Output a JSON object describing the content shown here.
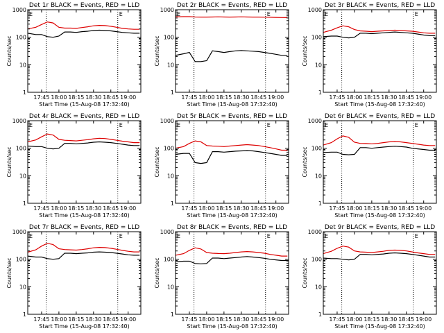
{
  "figure": {
    "colors": {
      "events": "#000000",
      "lld": "#dd0000",
      "axes": "#000000",
      "background": "#ffffff"
    },
    "x_tick_labels": [
      "17:45",
      "18:00",
      "18:15",
      "18:30",
      "18:45",
      "19:00"
    ],
    "y_tick_labels": [
      "1",
      "10",
      "100",
      "1000"
    ],
    "ylabel": "Counts/sec",
    "xlabel": "Start Time (15-Aug-08 17:32:40)",
    "marker_label": "E"
  },
  "chart_data": [
    {
      "type": "line",
      "title": "Det 1r BLACK = Events, RED = LLD",
      "ylabel": "Counts/sec",
      "xlabel": "Start Time (15-Aug-08 17:32:40)",
      "ylim": [
        1,
        1000
      ],
      "y_scale": "log",
      "x_ticks": [
        "17:45",
        "18:00",
        "18:15",
        "18:30",
        "18:45",
        "19:00"
      ],
      "vertical_markers": [
        "17:49",
        "18:51"
      ],
      "grid": false,
      "x": [
        "17:33",
        "17:40",
        "17:45",
        "17:50",
        "17:55",
        "18:00",
        "18:05",
        "18:10",
        "18:15",
        "18:20",
        "18:25",
        "18:30",
        "18:35",
        "18:40",
        "18:45",
        "18:50",
        "18:55",
        "19:00",
        "19:05",
        "19:10"
      ],
      "series": [
        {
          "name": "Events",
          "color": "#000000",
          "values": [
            140,
            125,
            125,
            105,
            100,
            110,
            155,
            155,
            150,
            160,
            165,
            175,
            180,
            175,
            170,
            160,
            150,
            145,
            140,
            140
          ]
        },
        {
          "name": "LLD",
          "color": "#dd0000",
          "values": [
            200,
            230,
            290,
            360,
            330,
            230,
            215,
            215,
            210,
            225,
            240,
            260,
            270,
            265,
            250,
            230,
            210,
            200,
            195,
            195
          ]
        }
      ]
    },
    {
      "type": "line",
      "title": "Det 2r BLACK = Events, RED = LLD",
      "ylabel": "Counts/sec",
      "xlabel": "Start Time (15-Aug-08 17:32:40)",
      "ylim": [
        1,
        1000
      ],
      "y_scale": "log",
      "x_ticks": [
        "17:45",
        "18:00",
        "18:15",
        "18:30",
        "18:45",
        "19:00"
      ],
      "vertical_markers": [
        "17:49",
        "18:51"
      ],
      "grid": false,
      "x": [
        "17:33",
        "17:40",
        "17:45",
        "17:50",
        "17:55",
        "18:00",
        "18:05",
        "18:10",
        "18:15",
        "18:20",
        "18:25",
        "18:30",
        "18:35",
        "18:40",
        "18:45",
        "18:50",
        "18:55",
        "19:00",
        "19:05",
        "19:10"
      ],
      "series": [
        {
          "name": "Events",
          "color": "#000000",
          "values": [
            22,
            25,
            28,
            13,
            13,
            14,
            32,
            30,
            28,
            30,
            32,
            33,
            32,
            31,
            30,
            28,
            26,
            24,
            22,
            22
          ]
        },
        {
          "name": "LLD",
          "color": "#dd0000",
          "values": [
            550,
            560,
            560,
            545,
            540,
            540,
            545,
            550,
            545,
            540,
            545,
            550,
            545,
            540,
            540,
            535,
            530,
            525,
            520,
            515
          ]
        }
      ]
    },
    {
      "type": "line",
      "title": "Det 3r BLACK = Events, RED = LLD",
      "ylabel": "Counts/sec",
      "xlabel": "Start Time (15-Aug-08 17:32:40)",
      "ylim": [
        1,
        1000
      ],
      "y_scale": "log",
      "x_ticks": [
        "17:45",
        "18:00",
        "18:15",
        "18:30",
        "18:45",
        "19:00"
      ],
      "vertical_markers": [
        "17:49",
        "18:51"
      ],
      "grid": false,
      "x": [
        "17:33",
        "17:40",
        "17:45",
        "17:50",
        "17:55",
        "18:00",
        "18:05",
        "18:10",
        "18:15",
        "18:20",
        "18:25",
        "18:30",
        "18:35",
        "18:40",
        "18:45",
        "18:50",
        "18:55",
        "19:00",
        "19:05",
        "19:10"
      ],
      "series": [
        {
          "name": "Events",
          "color": "#000000",
          "values": [
            105,
            110,
            110,
            100,
            95,
            100,
            140,
            140,
            135,
            140,
            145,
            150,
            155,
            150,
            145,
            140,
            130,
            120,
            115,
            115
          ]
        },
        {
          "name": "LLD",
          "color": "#dd0000",
          "values": [
            150,
            180,
            220,
            260,
            240,
            190,
            170,
            165,
            160,
            165,
            170,
            175,
            180,
            175,
            170,
            165,
            155,
            145,
            140,
            140
          ]
        }
      ]
    },
    {
      "type": "line",
      "title": "Det 4r BLACK = Events, RED = LLD",
      "ylabel": "Counts/sec",
      "xlabel": "Start Time (15-Aug-08 17:32:40)",
      "ylim": [
        1,
        1000
      ],
      "y_scale": "log",
      "x_ticks": [
        "17:45",
        "18:00",
        "18:15",
        "18:30",
        "18:45",
        "19:00"
      ],
      "vertical_markers": [
        "17:49",
        "18:51"
      ],
      "grid": false,
      "x": [
        "17:33",
        "17:40",
        "17:45",
        "17:50",
        "17:55",
        "18:00",
        "18:05",
        "18:10",
        "18:15",
        "18:20",
        "18:25",
        "18:30",
        "18:35",
        "18:40",
        "18:45",
        "18:50",
        "18:55",
        "19:00",
        "19:05",
        "19:10"
      ],
      "series": [
        {
          "name": "Events",
          "color": "#000000",
          "values": [
            120,
            115,
            115,
            100,
            95,
            100,
            150,
            150,
            145,
            150,
            155,
            165,
            170,
            165,
            160,
            150,
            140,
            130,
            125,
            125
          ]
        },
        {
          "name": "LLD",
          "color": "#dd0000",
          "values": [
            170,
            200,
            260,
            330,
            300,
            210,
            195,
            190,
            185,
            195,
            205,
            220,
            230,
            225,
            210,
            195,
            180,
            170,
            160,
            160
          ]
        }
      ]
    },
    {
      "type": "line",
      "title": "Det 5r BLACK = Events, RED = LLD",
      "ylabel": "Counts/sec",
      "xlabel": "Start Time (15-Aug-08 17:32:40)",
      "ylim": [
        1,
        1000
      ],
      "y_scale": "log",
      "x_ticks": [
        "17:45",
        "18:00",
        "18:15",
        "18:30",
        "18:45",
        "19:00"
      ],
      "vertical_markers": [
        "17:49",
        "18:51"
      ],
      "grid": false,
      "x": [
        "17:33",
        "17:40",
        "17:45",
        "17:50",
        "17:55",
        "18:00",
        "18:05",
        "18:10",
        "18:15",
        "18:20",
        "18:25",
        "18:30",
        "18:35",
        "18:40",
        "18:45",
        "18:50",
        "18:55",
        "19:00",
        "19:05",
        "19:10"
      ],
      "series": [
        {
          "name": "Events",
          "color": "#000000",
          "values": [
            60,
            65,
            65,
            30,
            28,
            30,
            75,
            75,
            72,
            75,
            78,
            80,
            82,
            80,
            75,
            70,
            65,
            60,
            55,
            55
          ]
        },
        {
          "name": "LLD",
          "color": "#dd0000",
          "values": [
            100,
            115,
            150,
            185,
            170,
            125,
            120,
            118,
            115,
            120,
            125,
            130,
            135,
            130,
            125,
            115,
            105,
            95,
            85,
            85
          ]
        }
      ]
    },
    {
      "type": "line",
      "title": "Det 6r BLACK = Events, RED = LLD",
      "ylabel": "Counts/sec",
      "xlabel": "Start Time (15-Aug-08 17:32:40)",
      "ylim": [
        1,
        1000
      ],
      "y_scale": "log",
      "x_ticks": [
        "17:45",
        "18:00",
        "18:15",
        "18:30",
        "18:45",
        "19:00"
      ],
      "vertical_markers": [
        "17:49",
        "18:51"
      ],
      "grid": false,
      "x": [
        "17:33",
        "17:40",
        "17:45",
        "17:50",
        "17:55",
        "18:00",
        "18:05",
        "18:10",
        "18:15",
        "18:20",
        "18:25",
        "18:30",
        "18:35",
        "18:40",
        "18:45",
        "18:50",
        "18:55",
        "19:00",
        "19:05",
        "19:10"
      ],
      "series": [
        {
          "name": "Events",
          "color": "#000000",
          "values": [
            70,
            72,
            72,
            60,
            58,
            60,
            105,
            105,
            100,
            105,
            110,
            115,
            118,
            115,
            110,
            100,
            95,
            90,
            85,
            85
          ]
        },
        {
          "name": "LLD",
          "color": "#dd0000",
          "values": [
            130,
            160,
            220,
            280,
            250,
            165,
            150,
            148,
            145,
            150,
            160,
            170,
            175,
            170,
            160,
            150,
            140,
            130,
            125,
            125
          ]
        }
      ]
    },
    {
      "type": "line",
      "title": "Det 7r BLACK = Events, RED = LLD",
      "ylabel": "Counts/sec",
      "xlabel": "Start Time (15-Aug-08 17:32:40)",
      "ylim": [
        1,
        1000
      ],
      "y_scale": "log",
      "x_ticks": [
        "17:45",
        "18:00",
        "18:15",
        "18:30",
        "18:45",
        "19:00"
      ],
      "vertical_markers": [
        "17:49",
        "18:51"
      ],
      "grid": false,
      "x": [
        "17:33",
        "17:40",
        "17:45",
        "17:50",
        "17:55",
        "18:00",
        "18:05",
        "18:10",
        "18:15",
        "18:20",
        "18:25",
        "18:30",
        "18:35",
        "18:40",
        "18:45",
        "18:50",
        "18:55",
        "19:00",
        "19:05",
        "19:10"
      ],
      "series": [
        {
          "name": "Events",
          "color": "#000000",
          "values": [
            130,
            120,
            120,
            105,
            100,
            105,
            165,
            165,
            160,
            165,
            170,
            180,
            185,
            180,
            175,
            165,
            155,
            145,
            140,
            140
          ]
        },
        {
          "name": "LLD",
          "color": "#dd0000",
          "values": [
            180,
            220,
            300,
            380,
            340,
            240,
            225,
            220,
            215,
            225,
            240,
            260,
            270,
            265,
            250,
            230,
            210,
            195,
            185,
            185
          ]
        }
      ]
    },
    {
      "type": "line",
      "title": "Det 8r BLACK = Events, RED = LLD",
      "ylabel": "Counts/sec",
      "xlabel": "Start Time (15-Aug-08 17:32:40)",
      "ylim": [
        1,
        1000
      ],
      "y_scale": "log",
      "x_ticks": [
        "17:45",
        "18:00",
        "18:15",
        "18:30",
        "18:45",
        "19:00"
      ],
      "vertical_markers": [
        "17:49",
        "18:51"
      ],
      "grid": false,
      "x": [
        "17:33",
        "17:40",
        "17:45",
        "17:50",
        "17:55",
        "18:00",
        "18:05",
        "18:10",
        "18:15",
        "18:20",
        "18:25",
        "18:30",
        "18:35",
        "18:40",
        "18:45",
        "18:50",
        "18:55",
        "19:00",
        "19:05",
        "19:10"
      ],
      "series": [
        {
          "name": "Events",
          "color": "#000000",
          "values": [
            80,
            85,
            85,
            70,
            68,
            70,
            110,
            110,
            105,
            110,
            115,
            120,
            125,
            120,
            115,
            108,
            100,
            95,
            90,
            90
          ]
        },
        {
          "name": "LLD",
          "color": "#dd0000",
          "values": [
            140,
            160,
            210,
            260,
            235,
            175,
            165,
            162,
            160,
            165,
            175,
            185,
            190,
            185,
            175,
            165,
            150,
            140,
            130,
            130
          ]
        }
      ]
    },
    {
      "type": "line",
      "title": "Det 9r BLACK = Events, RED = LLD",
      "ylabel": "Counts/sec",
      "xlabel": "Start Time (15-Aug-08 17:32:40)",
      "ylim": [
        1,
        1000
      ],
      "y_scale": "log",
      "x_ticks": [
        "17:45",
        "18:00",
        "18:15",
        "18:30",
        "18:45",
        "19:00"
      ],
      "vertical_markers": [
        "17:49",
        "18:51"
      ],
      "grid": false,
      "x": [
        "17:33",
        "17:40",
        "17:45",
        "17:50",
        "17:55",
        "18:00",
        "18:05",
        "18:10",
        "18:15",
        "18:20",
        "18:25",
        "18:30",
        "18:35",
        "18:40",
        "18:45",
        "18:50",
        "18:55",
        "19:00",
        "19:05",
        "19:10"
      ],
      "series": [
        {
          "name": "Events",
          "color": "#000000",
          "values": [
            110,
            105,
            105,
            100,
            95,
            100,
            150,
            150,
            145,
            150,
            155,
            165,
            170,
            165,
            160,
            150,
            140,
            130,
            120,
            120
          ]
        },
        {
          "name": "LLD",
          "color": "#dd0000",
          "values": [
            160,
            195,
            250,
            300,
            275,
            200,
            185,
            180,
            175,
            185,
            195,
            210,
            215,
            210,
            200,
            185,
            170,
            160,
            150,
            150
          ]
        }
      ]
    }
  ]
}
